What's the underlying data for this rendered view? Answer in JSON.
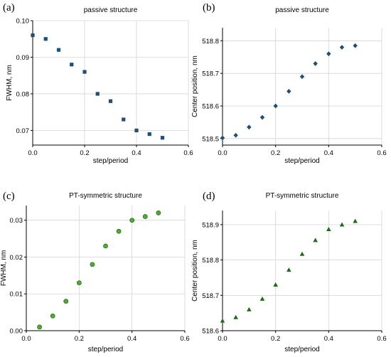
{
  "chart_data": [
    {
      "panel_label": "(a)",
      "type": "scatter",
      "title": "passive structure",
      "xlabel": "step/period",
      "ylabel": "FWHM, nm",
      "xlim": [
        0,
        0.6
      ],
      "ylim": [
        0.066,
        0.1
      ],
      "xticks": [
        0,
        0.2,
        0.4,
        0.6
      ],
      "xtick_labels": [
        "0.0",
        "0.2",
        "0.4",
        "0.6"
      ],
      "yticks": [
        0.07,
        0.08,
        0.09,
        0.1
      ],
      "ytick_labels": [
        "0.07",
        "0.08",
        "0.09",
        "0.10"
      ],
      "grid": true,
      "marker": "square",
      "color": "#1f4e79",
      "x": [
        0,
        0.05,
        0.1,
        0.15,
        0.2,
        0.25,
        0.3,
        0.35,
        0.4,
        0.45,
        0.5
      ],
      "y": [
        0.096,
        0.095,
        0.092,
        0.088,
        0.086,
        0.08,
        0.078,
        0.073,
        0.07,
        0.069,
        0.068
      ]
    },
    {
      "panel_label": "(b)",
      "type": "scatter",
      "title": "passive structure",
      "xlabel": "step/period",
      "ylabel": "Center position, nm",
      "xlim": [
        0,
        0.6
      ],
      "ylim": [
        518.48,
        518.84
      ],
      "xticks": [
        0,
        0.2,
        0.4,
        0.6
      ],
      "xtick_labels": [
        "0.0",
        "0.2",
        "0.4",
        "0.6"
      ],
      "yticks": [
        518.5,
        518.6,
        518.7,
        518.8
      ],
      "ytick_labels": [
        "518.5",
        "518.6",
        "518.7",
        "518.8"
      ],
      "grid": true,
      "marker": "diamond",
      "color": "#1f4e79",
      "x": [
        0,
        0.05,
        0.1,
        0.15,
        0.2,
        0.25,
        0.3,
        0.35,
        0.4,
        0.45,
        0.5
      ],
      "y": [
        518.502,
        518.51,
        518.535,
        518.565,
        518.6,
        518.645,
        518.69,
        518.73,
        518.76,
        518.78,
        518.785
      ]
    },
    {
      "panel_label": "(c)",
      "type": "scatter",
      "title": "PT-symmetric structure",
      "xlabel": "step/period",
      "ylabel": "FWHM, nm",
      "xlim": [
        0,
        0.6
      ],
      "ylim": [
        0,
        0.034
      ],
      "xticks": [
        0,
        0.2,
        0.4,
        0.6
      ],
      "xtick_labels": [
        "0.0",
        "0.2",
        "0.4",
        "0.6"
      ],
      "yticks": [
        0,
        0.01,
        0.02,
        0.03
      ],
      "ytick_labels": [
        "0.00",
        "0.01",
        "0.02",
        "0.03"
      ],
      "grid": true,
      "marker": "circle",
      "color": "#2e8b1e",
      "x": [
        0.05,
        0.1,
        0.15,
        0.2,
        0.25,
        0.3,
        0.35,
        0.4,
        0.45,
        0.5
      ],
      "y": [
        0.001,
        0.004,
        0.008,
        0.013,
        0.018,
        0.023,
        0.027,
        0.03,
        0.031,
        0.032
      ]
    },
    {
      "panel_label": "(d)",
      "type": "scatter",
      "title": "PT-symmetric structure",
      "xlabel": "step/period",
      "ylabel": "Center position, nm",
      "xlim": [
        0,
        0.6
      ],
      "ylim": [
        518.6,
        518.94
      ],
      "xticks": [
        0,
        0.2,
        0.4,
        0.6
      ],
      "xtick_labels": [
        "0.0",
        "0.2",
        "0.4",
        "0.6"
      ],
      "yticks": [
        518.6,
        518.7,
        518.8,
        518.9
      ],
      "ytick_labels": [
        "518.6",
        "518.7",
        "518.8",
        "518.9"
      ],
      "grid": true,
      "marker": "triangle",
      "color": "#1a6e14",
      "x": [
        0,
        0.05,
        0.1,
        0.15,
        0.2,
        0.25,
        0.3,
        0.35,
        0.4,
        0.45,
        0.5
      ],
      "y": [
        518.628,
        518.638,
        518.66,
        518.69,
        518.73,
        518.772,
        518.817,
        518.856,
        518.887,
        518.9,
        518.91
      ]
    }
  ]
}
